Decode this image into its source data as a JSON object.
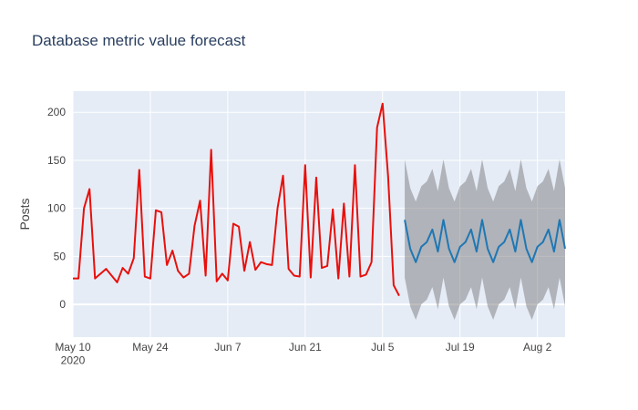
{
  "chart_data": {
    "type": "line",
    "title": "Database metric value forecast",
    "y_label": "Posts",
    "xlim": [
      "2020-05-10",
      "2020-08-07"
    ],
    "ylim": [
      -34,
      222
    ],
    "xticks": [
      {
        "value": "2020-05-10",
        "label": "May 10\n2020"
      },
      {
        "value": "2020-05-24",
        "label": "May 24"
      },
      {
        "value": "2020-06-07",
        "label": "Jun 7"
      },
      {
        "value": "2020-06-21",
        "label": "Jun 21"
      },
      {
        "value": "2020-07-05",
        "label": "Jul 5"
      },
      {
        "value": "2020-07-19",
        "label": "Jul 19"
      },
      {
        "value": "2020-08-02",
        "label": "Aug 2"
      }
    ],
    "yticks": [
      0,
      50,
      100,
      150,
      200
    ],
    "grid": true,
    "series": [
      {
        "color": "#e8100c",
        "x": [
          "2020-05-10",
          "2020-05-11",
          "2020-05-12",
          "2020-05-13",
          "2020-05-14",
          "2020-05-15",
          "2020-05-16",
          "2020-05-17",
          "2020-05-18",
          "2020-05-19",
          "2020-05-20",
          "2020-05-21",
          "2020-05-22",
          "2020-05-23",
          "2020-05-24",
          "2020-05-25",
          "2020-05-26",
          "2020-05-27",
          "2020-05-28",
          "2020-05-29",
          "2020-05-30",
          "2020-05-31",
          "2020-06-01",
          "2020-06-02",
          "2020-06-03",
          "2020-06-04",
          "2020-06-05",
          "2020-06-06",
          "2020-06-07",
          "2020-06-08",
          "2020-06-09",
          "2020-06-10",
          "2020-06-11",
          "2020-06-12",
          "2020-06-13",
          "2020-06-14",
          "2020-06-15",
          "2020-06-16",
          "2020-06-17",
          "2020-06-18",
          "2020-06-19",
          "2020-06-20",
          "2020-06-21",
          "2020-06-22",
          "2020-06-23",
          "2020-06-24",
          "2020-06-25",
          "2020-06-26",
          "2020-06-27",
          "2020-06-28",
          "2020-06-29",
          "2020-06-30",
          "2020-07-01",
          "2020-07-02",
          "2020-07-03",
          "2020-07-04",
          "2020-07-05",
          "2020-07-06",
          "2020-07-07",
          "2020-07-08"
        ],
        "values": [
          27,
          27,
          100,
          120,
          27,
          32,
          37,
          30,
          23,
          38,
          32,
          48,
          140,
          29,
          27,
          98,
          96,
          41,
          56,
          35,
          28,
          32,
          82,
          108,
          30,
          161,
          24,
          32,
          25,
          84,
          81,
          35,
          65,
          36,
          44,
          42,
          41,
          100,
          134,
          37,
          30,
          29,
          145,
          28,
          132,
          38,
          40,
          99,
          27,
          105,
          29,
          145,
          29,
          31,
          44,
          184,
          209,
          133,
          20,
          9
        ]
      },
      {
        "color": "#1f77b4",
        "band_color": "rgba(110,110,110,0.45)",
        "x": [
          "2020-07-09",
          "2020-07-10",
          "2020-07-11",
          "2020-07-12",
          "2020-07-13",
          "2020-07-14",
          "2020-07-15",
          "2020-07-16",
          "2020-07-17",
          "2020-07-18",
          "2020-07-19",
          "2020-07-20",
          "2020-07-21",
          "2020-07-22",
          "2020-07-23",
          "2020-07-24",
          "2020-07-25",
          "2020-07-26",
          "2020-07-27",
          "2020-07-28",
          "2020-07-29",
          "2020-07-30",
          "2020-07-31",
          "2020-08-01",
          "2020-08-02",
          "2020-08-03",
          "2020-08-04",
          "2020-08-05",
          "2020-08-06",
          "2020-08-07"
        ],
        "values": [
          88,
          58,
          44,
          60,
          65,
          78,
          55,
          88,
          58,
          44,
          60,
          65,
          78,
          55,
          88,
          58,
          44,
          60,
          65,
          78,
          55,
          88,
          58,
          44,
          60,
          65,
          78,
          55,
          88,
          58
        ],
        "upper": [
          151,
          121,
          107,
          123,
          128,
          141,
          118,
          151,
          121,
          107,
          123,
          128,
          141,
          118,
          151,
          121,
          107,
          123,
          128,
          141,
          118,
          151,
          121,
          107,
          123,
          128,
          141,
          118,
          151,
          121
        ],
        "lower": [
          28,
          -2,
          -16,
          0,
          5,
          18,
          -5,
          28,
          -2,
          -16,
          0,
          5,
          18,
          -5,
          28,
          -2,
          -16,
          0,
          5,
          18,
          -5,
          28,
          -2,
          -16,
          0,
          5,
          18,
          -5,
          28,
          -2
        ]
      }
    ]
  }
}
